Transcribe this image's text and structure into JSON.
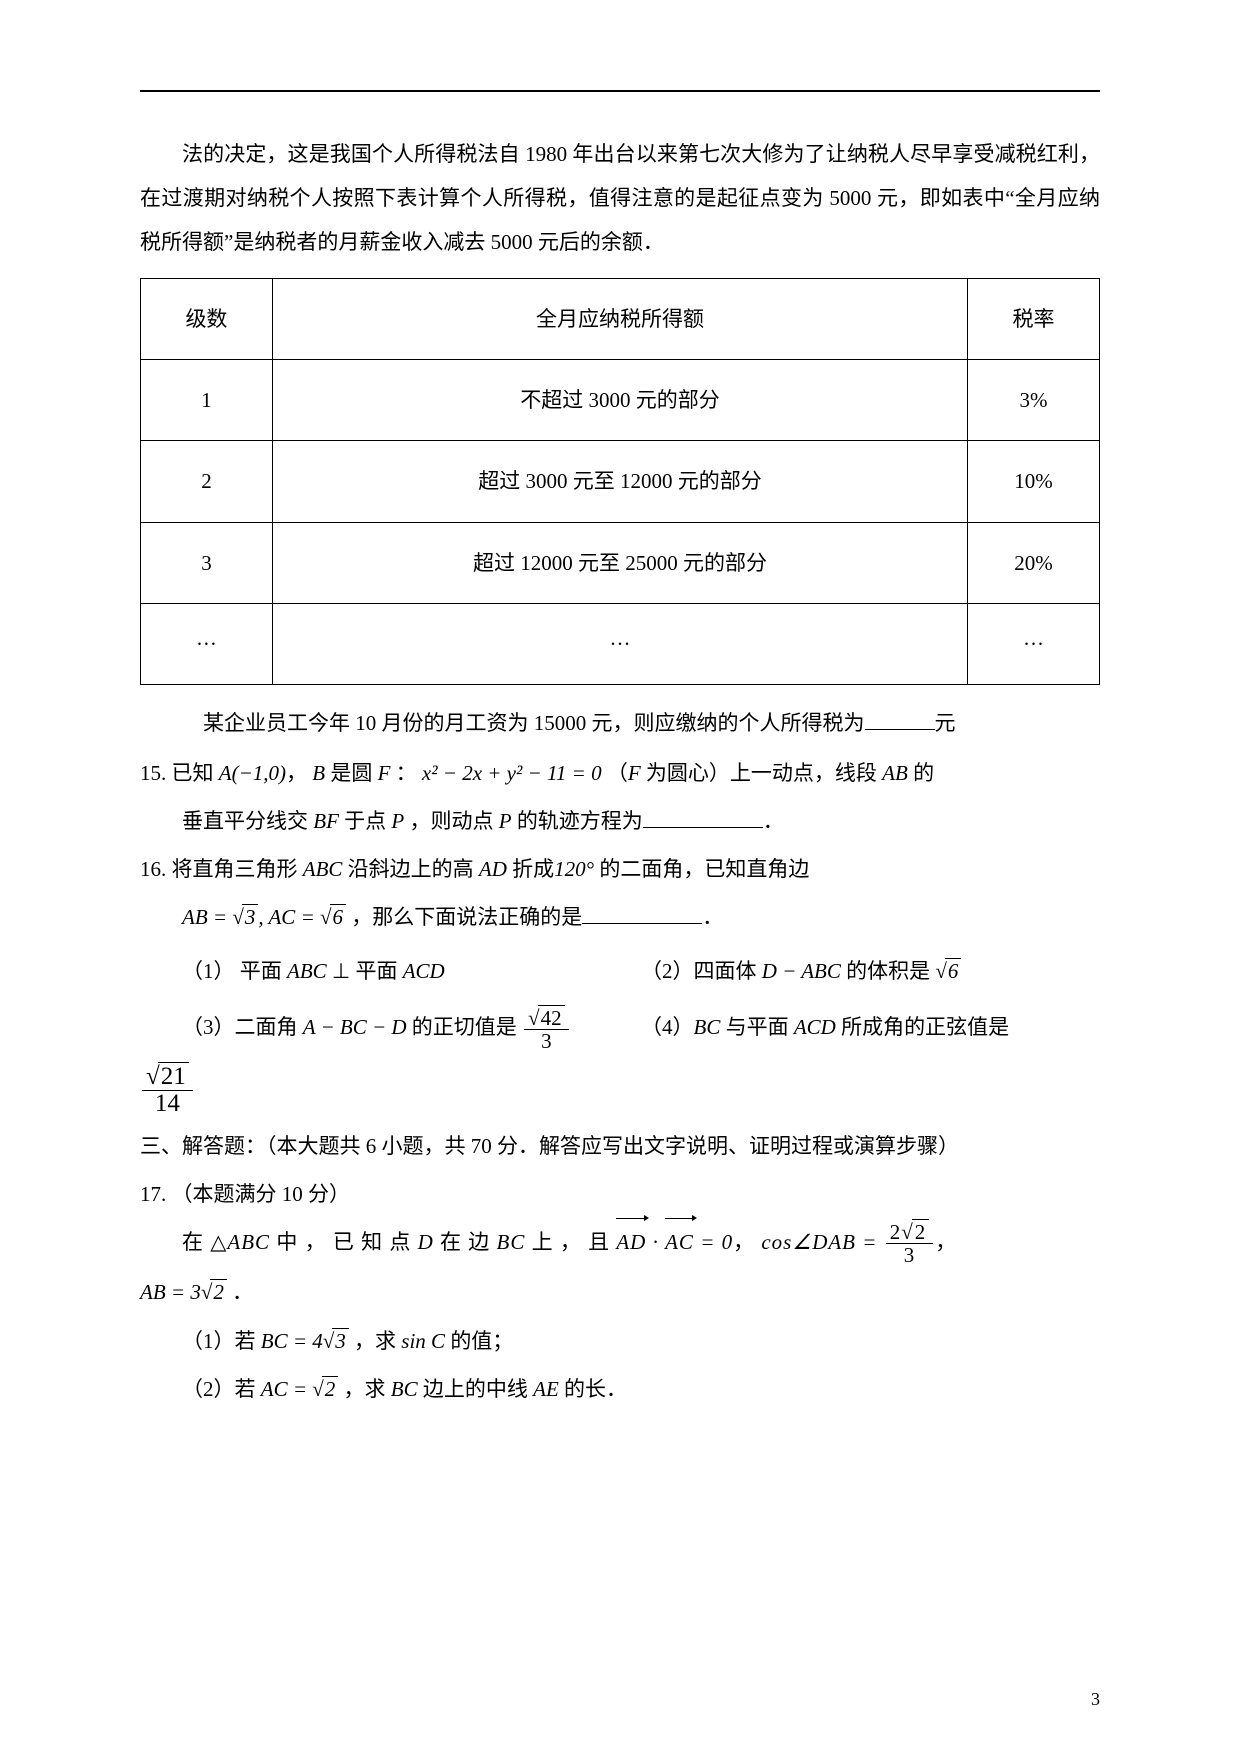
{
  "intro_paragraph": "法的决定，这是我国个人所得税法自 1980 年出台以来第七次大修为了让纳税人尽早享受减税红利，在过渡期对纳税个人按照下表计算个人所得税，值得注意的是起征点变为 5000 元，即如表中“全月应纳税所得额”是纳税者的月薪金收入减去 5000 元后的余额．",
  "tax_table": {
    "headers": [
      "级数",
      "全月应纳税所得额",
      "税率"
    ],
    "rows": [
      [
        "1",
        "不超过 3000 元的部分",
        "3%"
      ],
      [
        "2",
        "超过 3000 元至 12000 元的部分",
        "10%"
      ],
      [
        "3",
        "超过 12000 元至 25000 元的部分",
        "20%"
      ],
      [
        "···",
        "···",
        "···"
      ]
    ]
  },
  "q14_tail": "某企业员工今年 10 月份的月工资为 15000 元，则应缴纳的个人所得税为",
  "q14_unit": "元",
  "q15": {
    "num": "15.",
    "line1_a": "已知",
    "pointA": "A(−1,0)",
    "line1_b": "，",
    "Blabel": "B",
    "line1_c": " 是圆",
    "Flabel": "F",
    "colon": "：",
    "circle_eq": "x² − 2x + y² − 11 = 0",
    "line1_d": "（",
    "line1_e": " 为圆心）上一动点，线段",
    "ABlabel": "AB",
    "line1_f": " 的",
    "line2_a": "垂直平分线交 ",
    "BFlabel": "BF",
    "line2_b": " 于点 ",
    "Plabel": "P",
    "line2_c": " ，则动点 ",
    "line2_d": " 的轨迹方程为",
    "period": "．"
  },
  "q16": {
    "num": "16.",
    "line1_a": "将直角三角形 ",
    "ABC": "ABC",
    "line1_b": " 沿斜边上的高 ",
    "AD": "AD",
    "line1_c": " 折成",
    "angle": "120°",
    "line1_d": " 的二面角，已知直角边",
    "line2_a": "AB = ",
    "sqrt3": "3",
    "comma": ", ",
    "line2_b": "AC = ",
    "sqrt6": "6",
    "line2_c": " ，那么下面说法正确的是",
    "period": "．",
    "opt1_label": "（1）",
    "opt1_a": " 平面 ",
    "opt1_b": " ⊥ 平面 ",
    "ACD": "ACD",
    "opt2_label": "（2）",
    "opt2_a": "四面体 ",
    "DABC": "D − ABC",
    "opt2_b": " 的体积是 ",
    "opt3_label": "（3）",
    "opt3_a": "二面角 ",
    "ABCD": "A − BC − D",
    "opt3_b": " 的正切值是 ",
    "frac42_num": "42",
    "frac42_den": "3",
    "opt4_label": "（4）",
    "BC": "BC",
    "opt4_a": " 与平面 ",
    "opt4_b": " 所成角的正弦值是",
    "frac21_num": "21",
    "frac21_den": "14"
  },
  "section3": "三、解答题：（本大题共 6 小题，共 70 分．解答应写出文字说明、证明过程或演算步骤）",
  "q17": {
    "num": "17.",
    "header": "（本题满分 10 分）",
    "line1_a": "在 ",
    "tri": "△",
    "line1_b": " 中 ， 已 知 点 ",
    "D": "D",
    "line1_c": " 在 边 ",
    "line1_d": " 上 ， 且 ",
    "vecAD": "AD",
    "vecAC": "AC",
    "dot": " · ",
    "eq0": " = 0",
    "sep": "，",
    "cos_a": "cos∠",
    "DAB": "DAB",
    "eq": " = ",
    "frac_num": "2",
    "frac_num_rad": "2",
    "frac_den": "3",
    "line2_a": "AB = 3",
    "line2_rad": "2",
    "line2_p": " ．",
    "sub1_label": "（1）",
    "sub1_a": "若 ",
    "sub1_bc": "BC = 4",
    "sub1_rad": "3",
    "sub1_b": " ，求 ",
    "sinC": "sin C",
    "sub1_c": " 的值；",
    "sub2_label": "（2）",
    "sub2_a": "若 ",
    "sub2_ac": "AC = ",
    "sub2_rad": "2",
    "sub2_b": " ，求 ",
    "sub2_c": " 边上的中线 ",
    "AE": "AE",
    "sub2_d": " 的长．"
  },
  "page_number": "3"
}
